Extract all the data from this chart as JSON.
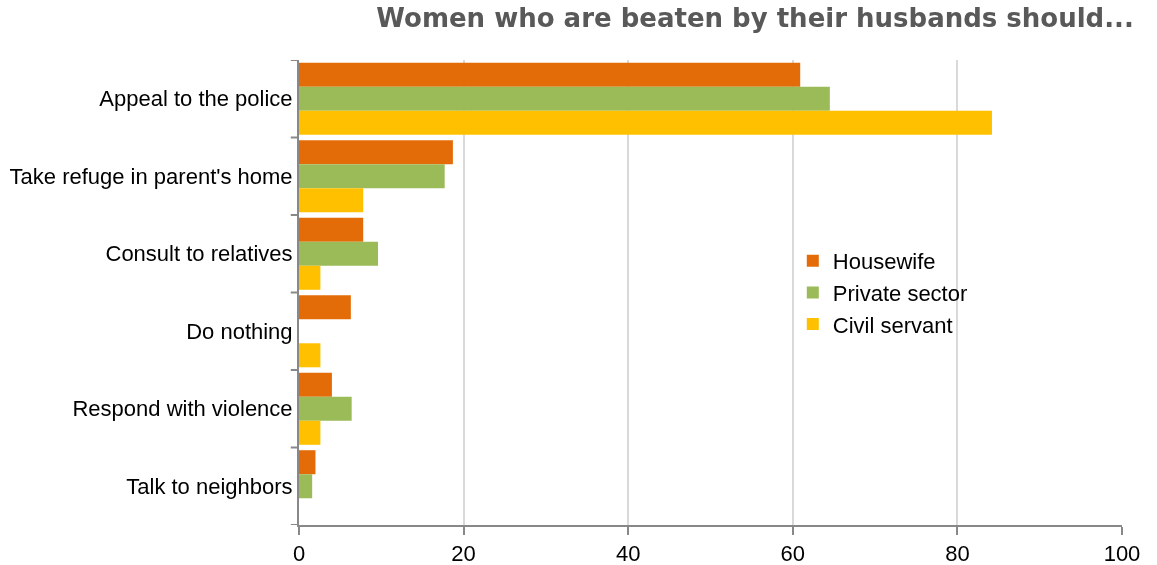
{
  "chart_data": {
    "type": "bar",
    "orientation": "horizontal",
    "title": "Women who are beaten by their husbands should...",
    "categories": [
      "Appeal to the police",
      "Take refuge in parent's home",
      "Consult to relatives",
      "Do nothing",
      "Respond with violence",
      "Talk to neighbors"
    ],
    "series": [
      {
        "name": "Housewife",
        "color": "#e36c09",
        "values": [
          60.9,
          18.7,
          7.8,
          6.3,
          4.0,
          2.0
        ]
      },
      {
        "name": "Private sector",
        "color": "#9bbb59",
        "values": [
          64.5,
          17.7,
          9.6,
          null,
          6.4,
          1.6
        ]
      },
      {
        "name": "Civil servant",
        "color": "#ffc000",
        "values": [
          84.2,
          7.8,
          2.6,
          2.6,
          2.6,
          null
        ]
      }
    ],
    "xlim": [
      0,
      100
    ],
    "xticks": [
      0,
      20,
      40,
      60,
      80,
      100
    ],
    "grid": "x",
    "legend": "right"
  }
}
